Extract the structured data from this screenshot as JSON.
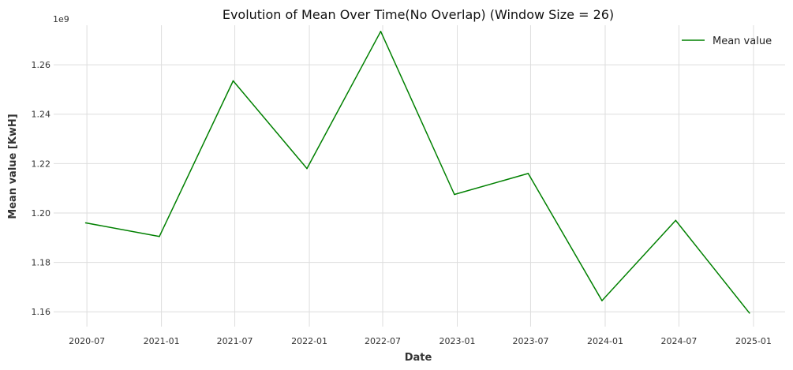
{
  "chart_data": {
    "type": "line",
    "title": "Evolution of Mean Over Time(No Overlap) (Window Size = 26)",
    "xlabel": "Date",
    "ylabel": "Mean value [KwH]",
    "y_offset_label": "1e9",
    "x_ticks": [
      "2020-07",
      "2021-01",
      "2021-07",
      "2022-01",
      "2022-07",
      "2023-01",
      "2023-07",
      "2024-01",
      "2024-07",
      "2025-01"
    ],
    "y_ticks": [
      "1.16",
      "1.18",
      "1.20",
      "1.22",
      "1.24",
      "1.26"
    ],
    "ylim": [
      1.154,
      1.276
    ],
    "xlim": [
      "2020-04-10",
      "2025-03-20"
    ],
    "grid": true,
    "legend_position": "top-right",
    "series": [
      {
        "name": "Mean value",
        "color": "#008000",
        "x": [
          "2020-06-28",
          "2020-12-27",
          "2021-06-27",
          "2021-12-26",
          "2022-06-26",
          "2022-12-25",
          "2023-06-25",
          "2023-12-24",
          "2024-06-23",
          "2024-12-22"
        ],
        "y": [
          1.196,
          1.1905,
          1.2535,
          1.218,
          1.2735,
          1.2075,
          1.216,
          1.1645,
          1.197,
          1.1595
        ]
      }
    ]
  }
}
